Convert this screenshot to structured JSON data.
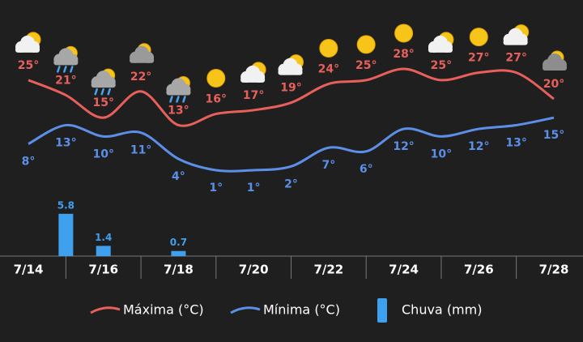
{
  "chart_data": {
    "type": "weather",
    "categories": [
      "7/14",
      null,
      "7/16",
      null,
      "7/18",
      null,
      "7/20",
      null,
      "7/22",
      null,
      "7/24",
      null,
      "7/26",
      null,
      "7/28"
    ],
    "icons": [
      "partly-cloudy",
      "rain",
      "rain",
      "cloudy-sun",
      "rain",
      "sunny",
      "partly-cloudy",
      "partly-cloudy",
      "sunny",
      "sunny",
      "sunny",
      "partly-cloudy",
      "sunny",
      "partly-cloudy",
      "cloudy"
    ],
    "series": [
      {
        "name": "Máxima (°C)",
        "color": "#e8605c",
        "values": [
          25,
          21,
          15,
          22,
          13,
          16,
          17,
          19,
          24,
          25,
          28,
          25,
          27,
          27,
          20
        ],
        "value_labels": [
          "25°",
          "21°",
          "15°",
          "22°",
          "13°",
          "16°",
          "17°",
          "19°",
          "24°",
          "25°",
          "28°",
          "25°",
          "27°",
          "27°",
          "20°"
        ]
      },
      {
        "name": "Mínima (°C)",
        "color": "#5b8fe8",
        "values": [
          8,
          13,
          10,
          11,
          4,
          1,
          1,
          2,
          7,
          6,
          12,
          10,
          12,
          13,
          15
        ],
        "value_labels": [
          "8°",
          "13°",
          "10°",
          "11°",
          "4°",
          "1°",
          "1°",
          "2°",
          "7°",
          "6°",
          "12°",
          "10°",
          "12°",
          "13°",
          "15°"
        ]
      },
      {
        "name": "Chuva (mm)",
        "color": "#3fa0ee",
        "kind": "bar",
        "values": [
          null,
          5.8,
          1.4,
          null,
          0.7,
          null,
          null,
          null,
          null,
          null,
          null,
          null,
          null,
          null,
          null
        ]
      }
    ]
  }
}
